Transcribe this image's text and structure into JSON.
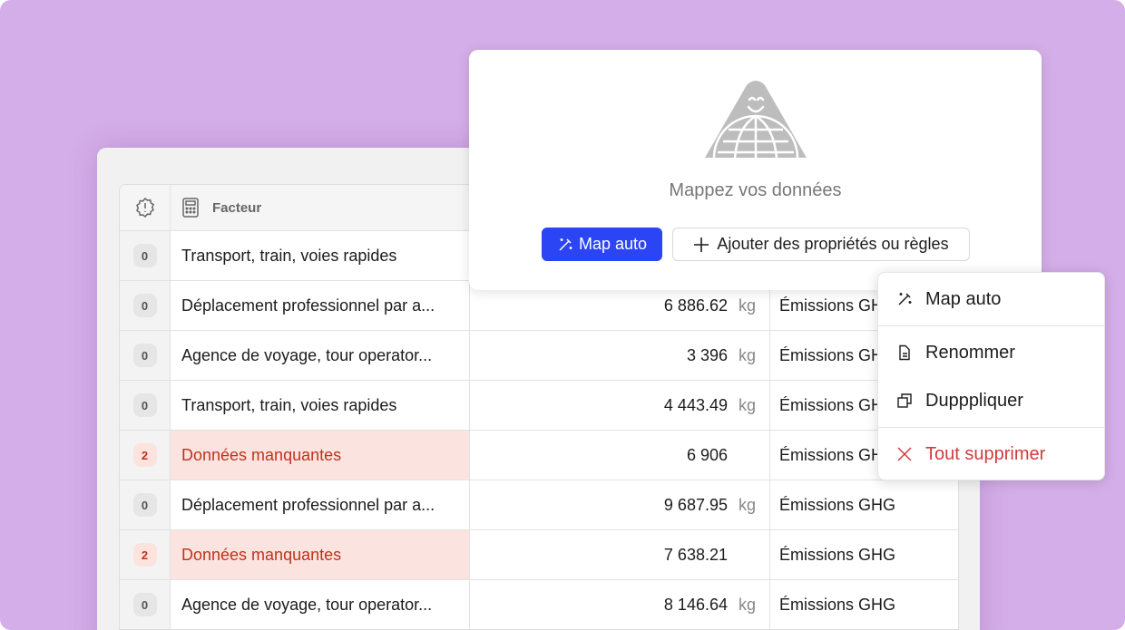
{
  "colors": {
    "background": "#d4aee8",
    "primary": "#2b45f5",
    "danger": "#d33a3a",
    "error_row": "#fbe4df"
  },
  "table": {
    "header": {
      "status_icon": "alert-badge-icon",
      "factor_icon": "calculator-icon",
      "factor_label": "Facteur"
    },
    "rows": [
      {
        "count": "0",
        "factor": "Transport, train, voies rapides",
        "value": "",
        "unit": "",
        "type": "",
        "error": false
      },
      {
        "count": "0",
        "factor": "Déplacement professionnel par a...",
        "value": "6 886.62",
        "unit": "kg",
        "type": "Émissions GHG",
        "error": false
      },
      {
        "count": "0",
        "factor": "Agence de voyage, tour operator...",
        "value": "3 396",
        "unit": "kg",
        "type": "Émissions GHG",
        "error": false
      },
      {
        "count": "0",
        "factor": "Transport, train, voies rapides",
        "value": "4 443.49",
        "unit": "kg",
        "type": "Émissions GHG",
        "error": false
      },
      {
        "count": "2",
        "factor": "Données manquantes",
        "value": "6 906",
        "unit": "",
        "type": "Émissions GHG",
        "error": true
      },
      {
        "count": "0",
        "factor": "Déplacement professionnel par a...",
        "value": "9 687.95",
        "unit": "kg",
        "type": "Émissions GHG",
        "error": false
      },
      {
        "count": "2",
        "factor": "Données manquantes",
        "value": "7 638.21",
        "unit": "",
        "type": "Émissions GHG",
        "error": true
      },
      {
        "count": "0",
        "factor": "Agence de voyage, tour operator...",
        "value": "8 146.64",
        "unit": "kg",
        "type": "Émissions GHG",
        "error": false
      }
    ]
  },
  "mapping_card": {
    "title": "Mappez vos données",
    "map_auto_label": "Map auto",
    "add_label": "Ajouter des propriétés ou règles"
  },
  "context_menu": {
    "items": [
      {
        "label": "Map auto",
        "icon": "magic-wand-icon"
      },
      {
        "label": "Renommer",
        "icon": "document-icon"
      },
      {
        "label": "Dupppliquer",
        "icon": "duplicate-icon"
      },
      {
        "label": "Tout supprimer",
        "icon": "close-icon"
      }
    ]
  }
}
